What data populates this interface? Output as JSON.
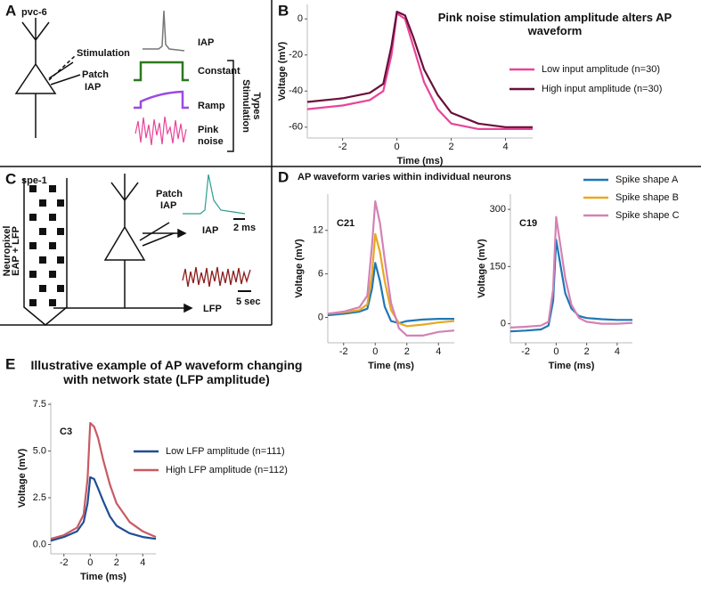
{
  "panel_a": {
    "letter": "A",
    "label": "pvc-6",
    "stimulation": "Stimulation",
    "patch": "Patch",
    "patch_iap": "IAP",
    "iap": "IAP",
    "constant": "Constant",
    "ramp": "Ramp",
    "pink": "Pink",
    "noise": "noise",
    "types_1": "Stimulation",
    "types_2": "Types"
  },
  "panel_b": {
    "letter": "B"
  },
  "panel_c": {
    "letter": "C",
    "label": "spe-1",
    "probe_1": "Neuropixel",
    "probe_2": "EAP + LFP",
    "patch": "Patch",
    "patch_iap": "IAP",
    "iap": "IAP",
    "lfp": "LFP",
    "scale_ms": "2 ms",
    "scale_sec": "5 sec"
  },
  "panel_d": {
    "letter": "D",
    "title": "AP waveform varies within individual neurons"
  },
  "panel_e": {
    "letter": "E",
    "title": "Illustrative example of AP waveform changing with network state (LFP amplitude)"
  },
  "chart_data": [
    {
      "type": "line",
      "title": "Pink noise stimulation amplitude alters AP waveform",
      "x_label": "Time (ms)",
      "y_label": "Voltage (mV)",
      "x": [
        -3.3,
        -2,
        -1,
        -0.5,
        -0.2,
        0,
        0.3,
        0.6,
        1,
        1.5,
        2,
        3,
        4,
        5
      ],
      "series": [
        {
          "name": "Low input amplitude (n=30)",
          "color": "#e8449a",
          "values": [
            -50,
            -48,
            -45,
            -40,
            -20,
            3,
            0,
            -15,
            -35,
            -50,
            -58,
            -61,
            -61,
            -61
          ]
        },
        {
          "name": "High input amplitude (n=30)",
          "color": "#6b0f3a",
          "values": [
            -46,
            -44,
            -41,
            -36,
            -15,
            4,
            2,
            -10,
            -28,
            -42,
            -52,
            -58,
            -60,
            -60
          ]
        }
      ],
      "xlim": [
        -3.3,
        5
      ],
      "ylim": [
        -66,
        8
      ],
      "xticks": [
        -2,
        0,
        2,
        4
      ],
      "yticks": [
        0,
        -20,
        -40,
        -60
      ]
    },
    {
      "type": "line",
      "title": "C21",
      "x_label": "Time (ms)",
      "y_label": "Voltage (mV)",
      "x": [
        -3,
        -2,
        -1,
        -0.5,
        -0.2,
        0,
        0.3,
        0.6,
        1,
        1.5,
        2,
        3,
        4,
        5
      ],
      "series": [
        {
          "name": "Spike shape A",
          "color": "#1f77b4",
          "values": [
            0.3,
            0.5,
            0.8,
            1.2,
            4,
            7.5,
            5,
            1.5,
            -0.5,
            -0.8,
            -0.5,
            -0.3,
            -0.2,
            -0.2
          ]
        },
        {
          "name": "Spike shape B",
          "color": "#e8a820",
          "values": [
            0.5,
            0.7,
            1,
            1.8,
            6,
            11.5,
            9,
            5,
            1,
            -0.8,
            -1.2,
            -1,
            -0.7,
            -0.5
          ]
        },
        {
          "name": "Spike shape C",
          "color": "#d382b5",
          "values": [
            0.5,
            0.8,
            1.4,
            3,
            10,
            16,
            13,
            8,
            2,
            -1.5,
            -2.5,
            -2.5,
            -2,
            -1.8
          ]
        }
      ],
      "xlim": [
        -3,
        5
      ],
      "ylim": [
        -3.5,
        17
      ],
      "xticks": [
        -2,
        0,
        2,
        4
      ],
      "yticks": [
        0,
        6,
        12
      ]
    },
    {
      "type": "line",
      "title": "C19",
      "x_label": "Time (ms)",
      "y_label": "Voltage (mV)",
      "x": [
        -3,
        -2,
        -1,
        -0.5,
        -0.2,
        0,
        0.3,
        0.6,
        1,
        1.5,
        2,
        3,
        4,
        5
      ],
      "series": [
        {
          "color": "#1f77b4",
          "values": [
            -20,
            -18,
            -15,
            -5,
            60,
            220,
            150,
            80,
            40,
            20,
            15,
            12,
            10,
            10
          ]
        },
        {
          "color": "#d382b5",
          "values": [
            -10,
            -8,
            -5,
            5,
            90,
            280,
            200,
            120,
            50,
            15,
            5,
            0,
            0,
            2
          ]
        }
      ],
      "xlim": [
        -3,
        5
      ],
      "ylim": [
        -50,
        340
      ],
      "xticks": [
        -2,
        0,
        2,
        4
      ],
      "yticks": [
        0,
        150,
        300
      ]
    },
    {
      "type": "line",
      "title": "C3",
      "x_label": "Time (ms)",
      "y_label": "Voltage (mV)",
      "x": [
        -3,
        -2,
        -1,
        -0.5,
        -0.2,
        0,
        0.3,
        0.6,
        1,
        1.5,
        2,
        3,
        4,
        5
      ],
      "series": [
        {
          "name": "Low LFP amplitude (n=111)",
          "color": "#1f4e94",
          "values": [
            0.2,
            0.4,
            0.7,
            1.2,
            2.2,
            3.6,
            3.5,
            3,
            2.3,
            1.5,
            1,
            0.6,
            0.4,
            0.3
          ]
        },
        {
          "name": "High LFP amplitude (n=112)",
          "color": "#c85a64",
          "values": [
            0.3,
            0.5,
            0.9,
            1.6,
            3.5,
            6.5,
            6.3,
            5.7,
            4.5,
            3.2,
            2.2,
            1.2,
            0.7,
            0.4
          ]
        }
      ],
      "xlim": [
        -3,
        5
      ],
      "ylim": [
        -0.5,
        7.6
      ],
      "xticks": [
        -2,
        0,
        2,
        4
      ],
      "yticks": [
        {
          "value": 0,
          "label": "0.0"
        },
        {
          "value": 2.5,
          "label": "2.5"
        },
        {
          "value": 5,
          "label": "5.0"
        },
        {
          "value": 7.5,
          "label": "7.5"
        }
      ]
    }
  ]
}
